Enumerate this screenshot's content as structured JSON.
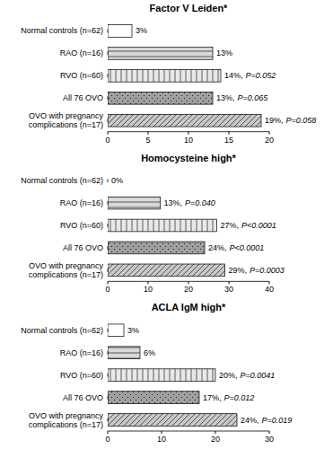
{
  "chart_data": [
    {
      "type": "bar",
      "orientation": "horizontal",
      "title": "Factor V Leiden*",
      "categories": [
        "Normal controls (n=62)",
        "RAO (n=16)",
        "RVO (n=60)",
        "All 76 OVO",
        "OVO with pregnancy\ncomplications (n=17)"
      ],
      "values": [
        3,
        13,
        14,
        13,
        19
      ],
      "value_labels": [
        "3%",
        "13%",
        "14%,",
        "13%,",
        "19%,"
      ],
      "annotations": [
        null,
        null,
        "P=0.052",
        "P=0.065",
        "P=0.058"
      ],
      "colors": [
        "white",
        "#d8d8d8",
        "#e8e8e8",
        "#a0a0a0",
        "#c8c8c8"
      ],
      "data_labels": true,
      "grid": false,
      "xlim": [
        0,
        20
      ],
      "xticks": [
        0,
        5,
        10,
        15,
        20
      ]
    },
    {
      "type": "bar",
      "orientation": "horizontal",
      "title": "Homocysteine high*",
      "categories": [
        "Normal controls (n=62)",
        "RAO (n=16)",
        "RVO (n=60)",
        "All 76 OVO",
        "OVO with pregnancy\ncomplications (n=17)"
      ],
      "values": [
        0,
        13,
        27,
        24,
        29
      ],
      "value_labels": [
        "0%",
        "13%,",
        "27%,",
        "24%,",
        "29%,"
      ],
      "annotations": [
        null,
        "P=0.040",
        "P<0.0001",
        "P<0.0001",
        "P=0.0003"
      ],
      "colors": [
        "white",
        "#d8d8d8",
        "#e8e8e8",
        "#a0a0a0",
        "#c8c8c8"
      ],
      "data_labels": true,
      "grid": false,
      "xlim": [
        0,
        40
      ],
      "xticks": [
        0,
        10,
        20,
        30,
        40
      ]
    },
    {
      "type": "bar",
      "orientation": "horizontal",
      "title": "ACLA IgM high*",
      "categories": [
        "Normal controls (n=62)",
        "RAO (n=16)",
        "RVO (n=60)",
        "All 76 OVO",
        "OVO with pregnancy\ncomplications (n=17)"
      ],
      "values": [
        3,
        6,
        20,
        17,
        24
      ],
      "value_labels": [
        "3%",
        "6%",
        "20%,",
        "17%,",
        "24%,"
      ],
      "annotations": [
        null,
        null,
        "P=0.0041",
        "P=0.012",
        "P=0.019"
      ],
      "colors": [
        "white",
        "#d8d8d8",
        "#e8e8e8",
        "#a0a0a0",
        "#c8c8c8"
      ],
      "data_labels": true,
      "grid": false,
      "xlim": [
        0,
        30
      ],
      "xticks": [
        0,
        10,
        20,
        30
      ]
    }
  ]
}
